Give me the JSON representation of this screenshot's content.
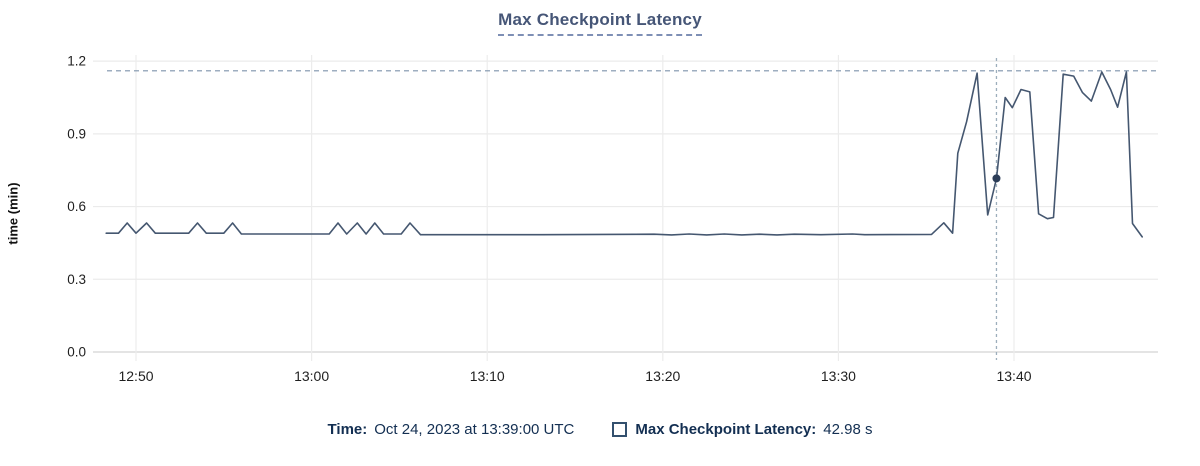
{
  "title": "Max Checkpoint Latency",
  "legend": {
    "time_label": "Time:",
    "time_value": "Oct 24, 2023 at 13:39:00 UTC",
    "series_label": "Max Checkpoint Latency:",
    "series_value": "42.98 s"
  },
  "colors": {
    "line": "#455770",
    "dot": "#2c3d58",
    "threshold": "#7f94ac",
    "cursor": "#9daebc",
    "grid": "#ebebeb",
    "axis": "#dcdcdc",
    "tick_text": "#1f1f1f",
    "title_text": "#465677",
    "legend_text": "#132f52"
  },
  "chart_data": {
    "type": "line",
    "title": "Max Checkpoint Latency",
    "xlabel": "",
    "ylabel": "time (min)",
    "ylim": [
      0,
      1.2
    ],
    "xlim_minutes_after_1248": [
      0,
      60.2
    ],
    "grid": true,
    "legend_position": "bottom",
    "x_ticks": [
      {
        "t": 2,
        "label": "12:50"
      },
      {
        "t": 12,
        "label": "13:00"
      },
      {
        "t": 22,
        "label": "13:10"
      },
      {
        "t": 32,
        "label": "13:20"
      },
      {
        "t": 42,
        "label": "13:30"
      },
      {
        "t": 52,
        "label": "13:40"
      }
    ],
    "y_ticks": [
      {
        "v": 0.0,
        "label": "0.0"
      },
      {
        "v": 0.3,
        "label": "0.3"
      },
      {
        "v": 0.6,
        "label": "0.6"
      },
      {
        "v": 0.9,
        "label": "0.9"
      },
      {
        "v": 1.2,
        "label": "1.2"
      }
    ],
    "threshold_value": 1.16,
    "cursor": {
      "t": 51,
      "time_label": "13:39:00"
    },
    "highlight_point": {
      "t": 51,
      "value_min": 0.7163,
      "value_label": "42.98 s"
    },
    "series": [
      {
        "name": "Max Checkpoint Latency",
        "units": "minutes, x = minutes after 12:48:00 UTC",
        "points": [
          [
            0.3,
            0.49
          ],
          [
            1.0,
            0.49
          ],
          [
            1.5,
            0.532
          ],
          [
            2.0,
            0.49
          ],
          [
            2.6,
            0.532
          ],
          [
            3.1,
            0.49
          ],
          [
            5.0,
            0.49
          ],
          [
            5.5,
            0.532
          ],
          [
            6.0,
            0.49
          ],
          [
            7.0,
            0.49
          ],
          [
            7.5,
            0.532
          ],
          [
            8.0,
            0.487
          ],
          [
            13.0,
            0.487
          ],
          [
            13.5,
            0.532
          ],
          [
            14.0,
            0.487
          ],
          [
            14.6,
            0.532
          ],
          [
            15.1,
            0.487
          ],
          [
            15.6,
            0.532
          ],
          [
            16.1,
            0.487
          ],
          [
            17.1,
            0.487
          ],
          [
            17.6,
            0.532
          ],
          [
            18.2,
            0.484
          ],
          [
            25.0,
            0.484
          ],
          [
            31.5,
            0.486
          ],
          [
            32.5,
            0.483
          ],
          [
            33.5,
            0.487
          ],
          [
            34.5,
            0.483
          ],
          [
            35.5,
            0.487
          ],
          [
            36.5,
            0.483
          ],
          [
            37.5,
            0.486
          ],
          [
            38.5,
            0.483
          ],
          [
            39.5,
            0.486
          ],
          [
            41.0,
            0.484
          ],
          [
            42.8,
            0.487
          ],
          [
            43.5,
            0.484
          ],
          [
            47.3,
            0.485
          ],
          [
            48.0,
            0.533
          ],
          [
            48.5,
            0.49
          ],
          [
            48.8,
            0.82
          ],
          [
            49.3,
            0.95
          ],
          [
            49.9,
            1.15
          ],
          [
            50.5,
            0.565
          ],
          [
            51.0,
            0.7163
          ],
          [
            51.5,
            1.05
          ],
          [
            51.9,
            1.008
          ],
          [
            52.4,
            1.083
          ],
          [
            52.9,
            1.073
          ],
          [
            53.4,
            0.57
          ],
          [
            53.9,
            0.55
          ],
          [
            54.25,
            0.555
          ],
          [
            54.8,
            1.146
          ],
          [
            55.4,
            1.138
          ],
          [
            55.9,
            1.07
          ],
          [
            56.4,
            1.035
          ],
          [
            57.0,
            1.155
          ],
          [
            57.5,
            1.083
          ],
          [
            57.9,
            1.01
          ],
          [
            58.4,
            1.155
          ],
          [
            58.75,
            0.53
          ],
          [
            59.3,
            0.475
          ]
        ]
      }
    ]
  }
}
